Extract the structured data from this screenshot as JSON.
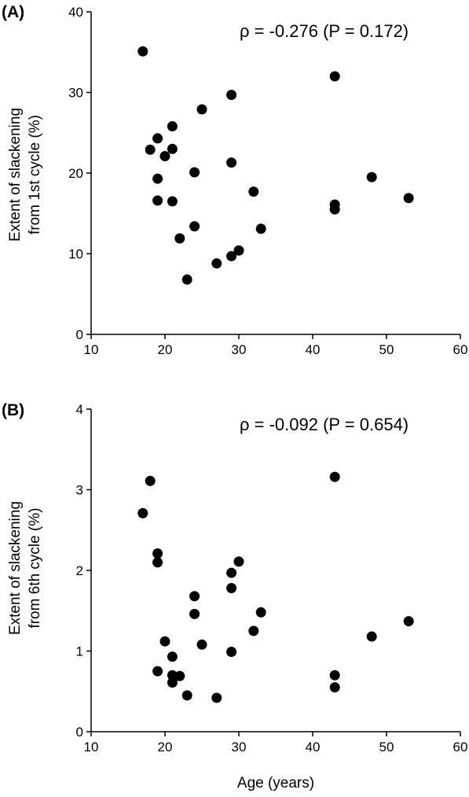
{
  "chart_data": [
    {
      "type": "scatter",
      "panel_label": "(A)",
      "annotation": "ρ = -0.276 (P = 0.172)",
      "xlabel": "",
      "ylabel_line1": "Extent of slackening",
      "ylabel_line2": "from 1st cycle (%)",
      "xlim": [
        10,
        60
      ],
      "ylim": [
        0,
        40
      ],
      "x_ticks": [
        10,
        20,
        30,
        40,
        50,
        60
      ],
      "y_ticks": [
        0,
        10,
        20,
        30,
        40
      ],
      "grid": false,
      "marker_color": "#000000",
      "points": [
        {
          "x": 17,
          "y": 35.1
        },
        {
          "x": 18,
          "y": 22.9
        },
        {
          "x": 19,
          "y": 24.3
        },
        {
          "x": 19,
          "y": 19.3
        },
        {
          "x": 19,
          "y": 16.6
        },
        {
          "x": 20,
          "y": 22.1
        },
        {
          "x": 21,
          "y": 25.8
        },
        {
          "x": 21,
          "y": 23.0
        },
        {
          "x": 21,
          "y": 16.5
        },
        {
          "x": 22,
          "y": 11.9
        },
        {
          "x": 23,
          "y": 6.8
        },
        {
          "x": 24,
          "y": 20.1
        },
        {
          "x": 24,
          "y": 13.4
        },
        {
          "x": 25,
          "y": 27.9
        },
        {
          "x": 27,
          "y": 8.8
        },
        {
          "x": 29,
          "y": 29.7
        },
        {
          "x": 29,
          "y": 21.3
        },
        {
          "x": 29,
          "y": 9.7
        },
        {
          "x": 30,
          "y": 10.4
        },
        {
          "x": 32,
          "y": 17.7
        },
        {
          "x": 33,
          "y": 13.1
        },
        {
          "x": 43,
          "y": 32.0
        },
        {
          "x": 43,
          "y": 16.1
        },
        {
          "x": 43,
          "y": 15.5
        },
        {
          "x": 48,
          "y": 19.5
        },
        {
          "x": 53,
          "y": 16.9
        }
      ]
    },
    {
      "type": "scatter",
      "panel_label": "(B)",
      "annotation": "ρ = -0.092 (P = 0.654)",
      "xlabel": "Age (years)",
      "ylabel_line1": "Extent of slackening",
      "ylabel_line2": "from 6th cycle (%)",
      "xlim": [
        10,
        60
      ],
      "ylim": [
        0,
        4
      ],
      "x_ticks": [
        10,
        20,
        30,
        40,
        50,
        60
      ],
      "y_ticks": [
        0,
        1,
        2,
        3,
        4
      ],
      "grid": false,
      "marker_color": "#000000",
      "points": [
        {
          "x": 17,
          "y": 2.71
        },
        {
          "x": 18,
          "y": 3.11
        },
        {
          "x": 19,
          "y": 2.21
        },
        {
          "x": 19,
          "y": 2.1
        },
        {
          "x": 19,
          "y": 0.75
        },
        {
          "x": 20,
          "y": 1.12
        },
        {
          "x": 21,
          "y": 0.93
        },
        {
          "x": 21,
          "y": 0.7
        },
        {
          "x": 21,
          "y": 0.61
        },
        {
          "x": 22,
          "y": 0.69
        },
        {
          "x": 23,
          "y": 0.45
        },
        {
          "x": 24,
          "y": 1.68
        },
        {
          "x": 24,
          "y": 1.46
        },
        {
          "x": 25,
          "y": 1.08
        },
        {
          "x": 27,
          "y": 0.42
        },
        {
          "x": 29,
          "y": 1.97
        },
        {
          "x": 29,
          "y": 1.78
        },
        {
          "x": 29,
          "y": 0.99
        },
        {
          "x": 30,
          "y": 2.11
        },
        {
          "x": 32,
          "y": 1.25
        },
        {
          "x": 33,
          "y": 1.48
        },
        {
          "x": 43,
          "y": 3.16
        },
        {
          "x": 43,
          "y": 0.7
        },
        {
          "x": 43,
          "y": 0.55
        },
        {
          "x": 48,
          "y": 1.18
        },
        {
          "x": 53,
          "y": 1.37
        }
      ]
    }
  ]
}
